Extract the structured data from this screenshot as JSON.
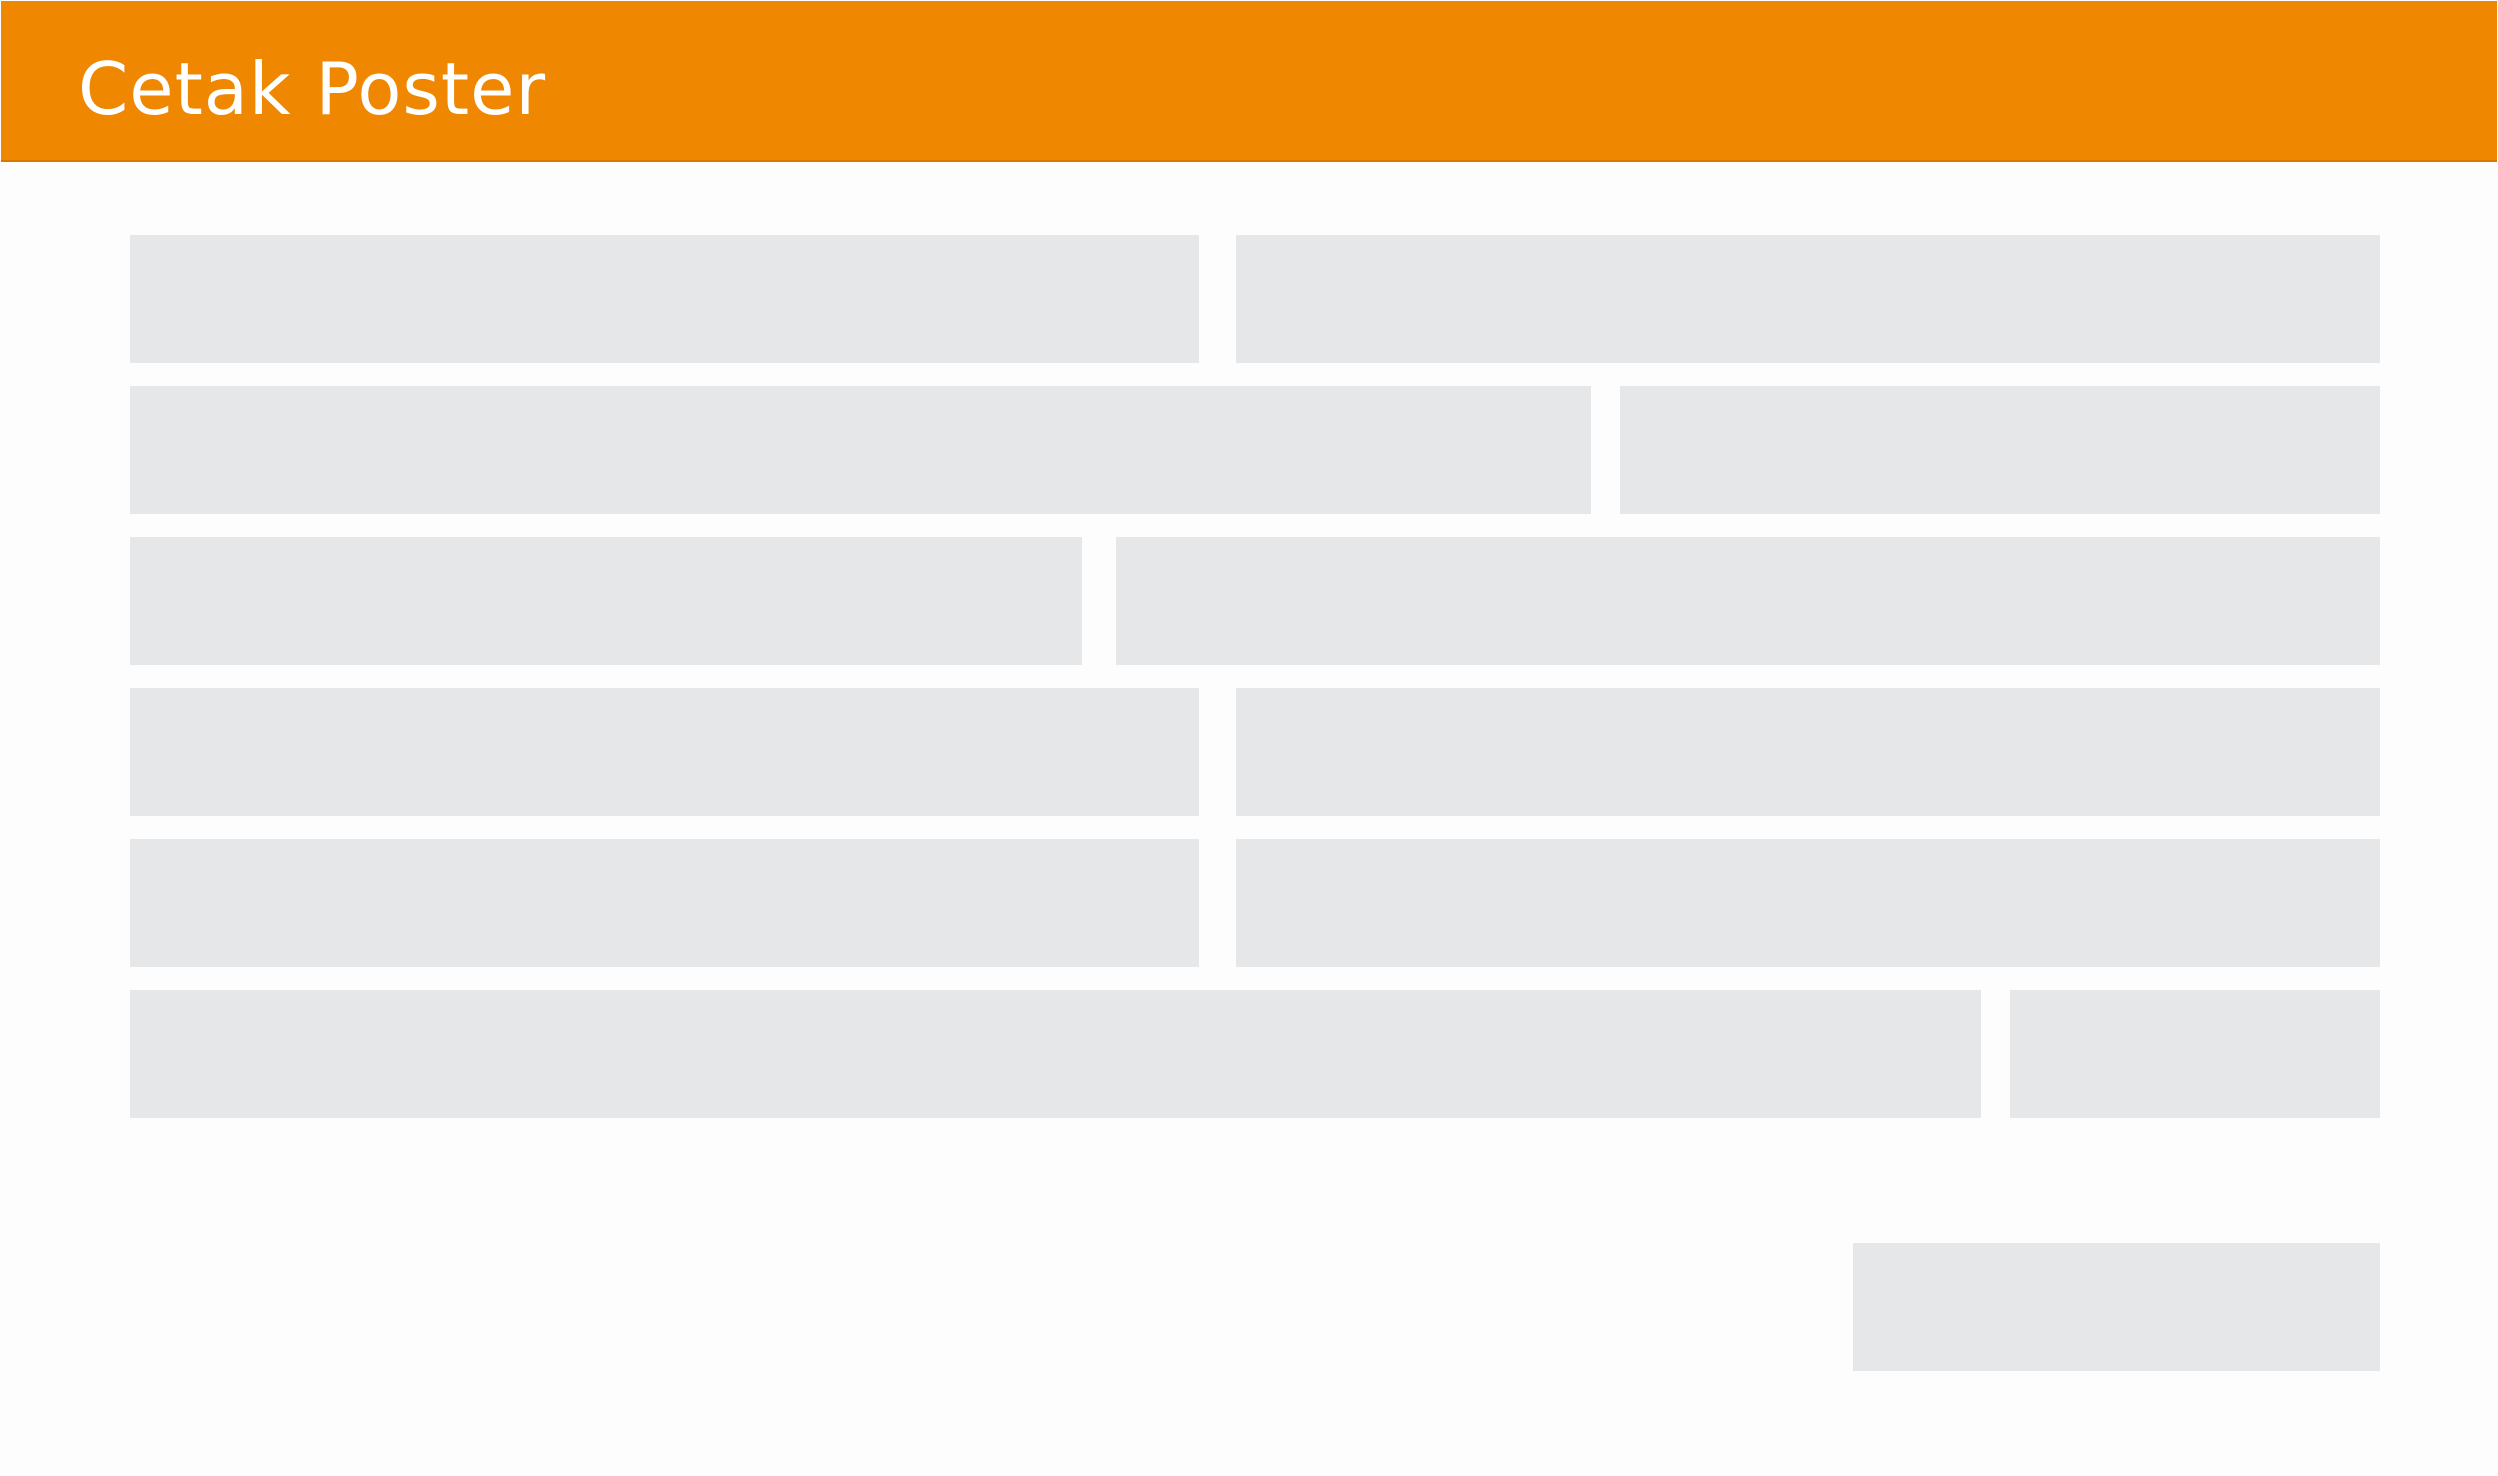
{
  "header": {
    "title": "Cetak Poster",
    "background_color": "#ef8700",
    "text_color": "#ffffff"
  },
  "placeholder_color": "#e6e7e9",
  "form": {
    "rows": [
      [
        "field-1a",
        "field-1b"
      ],
      [
        "field-2a",
        "field-2b"
      ],
      [
        "field-3a",
        "field-3b"
      ],
      [
        "field-4a",
        "field-4b"
      ],
      [
        "field-5a",
        "field-5b"
      ],
      [
        "field-6a",
        "field-6b"
      ]
    ],
    "action": "submit-placeholder"
  }
}
